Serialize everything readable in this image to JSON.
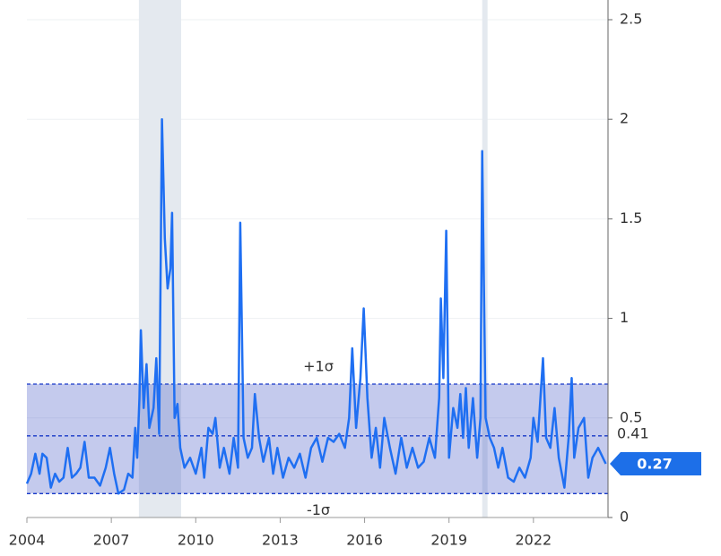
{
  "chart_data": {
    "type": "line",
    "color": "#1f6ff2",
    "x": [
      2004.0,
      2004.15,
      2004.3,
      2004.45,
      2004.55,
      2004.7,
      2004.85,
      2005.0,
      2005.15,
      2005.3,
      2005.45,
      2005.6,
      2005.75,
      2005.9,
      2006.05,
      2006.2,
      2006.4,
      2006.6,
      2006.8,
      2006.95,
      2007.1,
      2007.25,
      2007.45,
      2007.6,
      2007.75,
      2007.85,
      2007.92,
      2008.0,
      2008.05,
      2008.15,
      2008.25,
      2008.35,
      2008.5,
      2008.6,
      2008.7,
      2008.8,
      2008.9,
      2009.0,
      2009.1,
      2009.16,
      2009.25,
      2009.35,
      2009.45,
      2009.6,
      2009.8,
      2010.0,
      2010.2,
      2010.3,
      2010.45,
      2010.6,
      2010.7,
      2010.85,
      2011.0,
      2011.2,
      2011.35,
      2011.5,
      2011.58,
      2011.7,
      2011.85,
      2012.0,
      2012.1,
      2012.25,
      2012.4,
      2012.6,
      2012.75,
      2012.9,
      2013.1,
      2013.3,
      2013.5,
      2013.7,
      2013.9,
      2014.1,
      2014.3,
      2014.5,
      2014.7,
      2014.9,
      2015.1,
      2015.3,
      2015.45,
      2015.56,
      2015.7,
      2015.85,
      2015.97,
      2016.1,
      2016.25,
      2016.4,
      2016.55,
      2016.7,
      2016.9,
      2017.1,
      2017.3,
      2017.5,
      2017.7,
      2017.9,
      2018.1,
      2018.3,
      2018.5,
      2018.65,
      2018.71,
      2018.8,
      2018.9,
      2019.0,
      2019.15,
      2019.3,
      2019.4,
      2019.5,
      2019.6,
      2019.7,
      2019.85,
      2020.0,
      2020.12,
      2020.18,
      2020.3,
      2020.45,
      2020.6,
      2020.75,
      2020.9,
      2021.1,
      2021.3,
      2021.5,
      2021.7,
      2021.9,
      2022.0,
      2022.15,
      2022.34,
      2022.45,
      2022.6,
      2022.75,
      2022.9,
      2023.1,
      2023.25,
      2023.36,
      2023.45,
      2023.6,
      2023.8,
      2023.95,
      2024.1,
      2024.3,
      2024.57
    ],
    "values": [
      0.17,
      0.22,
      0.32,
      0.22,
      0.32,
      0.3,
      0.15,
      0.22,
      0.18,
      0.2,
      0.35,
      0.2,
      0.22,
      0.25,
      0.38,
      0.2,
      0.2,
      0.16,
      0.25,
      0.35,
      0.22,
      0.12,
      0.14,
      0.22,
      0.2,
      0.45,
      0.3,
      0.6,
      0.94,
      0.55,
      0.77,
      0.45,
      0.55,
      0.8,
      0.42,
      2.0,
      1.4,
      1.15,
      1.25,
      1.53,
      0.5,
      0.57,
      0.35,
      0.25,
      0.3,
      0.22,
      0.35,
      0.2,
      0.45,
      0.42,
      0.5,
      0.25,
      0.35,
      0.22,
      0.4,
      0.25,
      1.48,
      0.4,
      0.3,
      0.35,
      0.62,
      0.4,
      0.28,
      0.4,
      0.22,
      0.35,
      0.2,
      0.3,
      0.25,
      0.32,
      0.2,
      0.35,
      0.4,
      0.28,
      0.4,
      0.38,
      0.42,
      0.35,
      0.5,
      0.85,
      0.45,
      0.7,
      1.05,
      0.6,
      0.3,
      0.45,
      0.25,
      0.5,
      0.35,
      0.22,
      0.4,
      0.25,
      0.35,
      0.25,
      0.28,
      0.4,
      0.3,
      0.6,
      1.1,
      0.7,
      1.44,
      0.3,
      0.55,
      0.45,
      0.62,
      0.4,
      0.65,
      0.35,
      0.6,
      0.3,
      0.5,
      1.84,
      0.5,
      0.4,
      0.35,
      0.25,
      0.35,
      0.2,
      0.18,
      0.25,
      0.2,
      0.3,
      0.5,
      0.38,
      0.8,
      0.4,
      0.35,
      0.55,
      0.3,
      0.15,
      0.4,
      0.7,
      0.3,
      0.45,
      0.5,
      0.2,
      0.3,
      0.35,
      0.27
    ],
    "xlim": [
      2004,
      2024.65
    ],
    "xticks": [
      2004,
      2007,
      2010,
      2013,
      2016,
      2019,
      2022
    ],
    "ylim": [
      0,
      2.5
    ],
    "yticks": [
      0,
      0.5,
      1,
      1.5,
      2,
      2.5
    ],
    "grid": true,
    "recessions": [
      [
        2007.98,
        2009.48
      ],
      [
        2020.18,
        2020.37
      ]
    ],
    "mean": 0.41,
    "band": {
      "upper": 0.67,
      "lower": 0.12,
      "upper_label": "+1σ",
      "lower_label": "-1σ"
    }
  }
}
